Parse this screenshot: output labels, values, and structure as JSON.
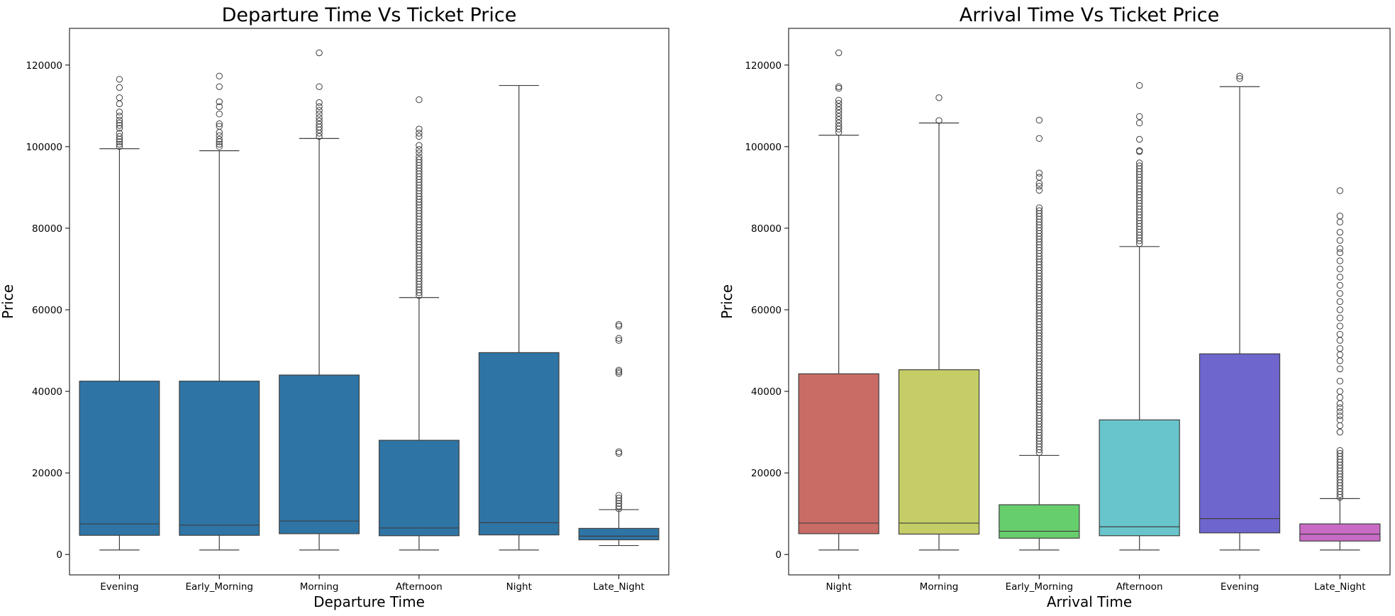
{
  "chart_data": [
    {
      "type": "box",
      "title": "Departure Time Vs Ticket Price",
      "xlabel": "Departure Time",
      "ylabel": "Price",
      "ylim": [
        -5000,
        129000
      ],
      "yticks": [
        0,
        20000,
        40000,
        60000,
        80000,
        100000,
        120000
      ],
      "grid": false,
      "categories": [
        "Evening",
        "Early_Morning",
        "Morning",
        "Afternoon",
        "Night",
        "Late_Night"
      ],
      "colors": [
        "#2e75a6",
        "#2e75a6",
        "#2e75a6",
        "#2e75a6",
        "#2e75a6",
        "#2e75a6"
      ],
      "boxes": [
        {
          "whislo": 1100,
          "q1": 4700,
          "med": 7500,
          "q3": 42500,
          "whishi": 99500,
          "fliers": [
            100000,
            100600,
            101200,
            101800,
            102500,
            103300,
            104500,
            105200,
            105800,
            106500,
            107500,
            108500,
            110500,
            112000,
            114500,
            116500
          ]
        },
        {
          "whislo": 1100,
          "q1": 4700,
          "med": 7200,
          "q3": 42500,
          "whishi": 99000,
          "fliers": [
            100000,
            100600,
            101200,
            101800,
            102700,
            103500,
            105000,
            105600,
            108000,
            109800,
            111000,
            114700,
            117300
          ]
        },
        {
          "whislo": 1100,
          "q1": 5100,
          "med": 8200,
          "q3": 44000,
          "whishi": 102000,
          "fliers": [
            102500,
            103300,
            104100,
            104800,
            105500,
            106300,
            107100,
            108000,
            108900,
            109800,
            110800,
            114700,
            123000
          ]
        },
        {
          "whislo": 1100,
          "q1": 4600,
          "med": 6500,
          "q3": 28000,
          "whishi": 63000,
          "fliers_range": [
            63500,
            97500
          ],
          "fliers": [
            98500,
            99300,
            100300,
            102500,
            103300,
            104300,
            111500
          ]
        },
        {
          "whislo": 1100,
          "q1": 4800,
          "med": 7800,
          "q3": 49500,
          "whishi": 115000,
          "fliers": []
        },
        {
          "whislo": 2200,
          "q1": 3600,
          "med": 4500,
          "q3": 6400,
          "whishi": 11000,
          "fliers_range": [
            11200,
            14500
          ],
          "fliers": [
            24800,
            25200,
            44400,
            44800,
            45200,
            52500,
            53000,
            56000,
            56400
          ]
        }
      ]
    },
    {
      "type": "box",
      "title": "Arrival Time Vs Ticket Price",
      "xlabel": "Arrival Time",
      "ylabel": "Price",
      "ylim": [
        -5000,
        129000
      ],
      "yticks": [
        0,
        20000,
        40000,
        60000,
        80000,
        100000,
        120000
      ],
      "grid": false,
      "categories": [
        "Night",
        "Morning",
        "Early_Morning",
        "Afternoon",
        "Evening",
        "Late_Night"
      ],
      "colors": [
        "#c96c65",
        "#c5cd66",
        "#67ce6c",
        "#68c5cb",
        "#6e66cd",
        "#c96bc6"
      ],
      "boxes": [
        {
          "whislo": 1100,
          "q1": 5100,
          "med": 7700,
          "q3": 44300,
          "whishi": 102800,
          "fliers": [
            103500,
            104300,
            105000,
            105800,
            106600,
            107400,
            108200,
            109000,
            109800,
            110600,
            111400,
            114300,
            114700,
            123000
          ]
        },
        {
          "whislo": 1100,
          "q1": 5000,
          "med": 7700,
          "q3": 45300,
          "whishi": 105800,
          "fliers": [
            106400,
            112000
          ]
        },
        {
          "whislo": 1100,
          "q1": 4000,
          "med": 5700,
          "q3": 12200,
          "whishi": 24300,
          "fliers_range": [
            25000,
            85000
          ],
          "fliers": [
            89300,
            90300,
            91000,
            92500,
            93500,
            102000,
            106500
          ]
        },
        {
          "whislo": 1100,
          "q1": 4600,
          "med": 6800,
          "q3": 33000,
          "whishi": 75500,
          "fliers_range": [
            76200,
            96000
          ],
          "fliers": [
            98800,
            99000,
            101800,
            105800,
            107400,
            115000
          ]
        },
        {
          "whislo": 1100,
          "q1": 5300,
          "med": 8800,
          "q3": 49200,
          "whishi": 114700,
          "fliers": [
            116700,
            117300
          ]
        },
        {
          "whislo": 1100,
          "q1": 3300,
          "med": 5000,
          "q3": 7500,
          "whishi": 13700,
          "fliers_range": [
            14000,
            25500
          ],
          "fliers": [
            30000,
            31600,
            33000,
            34000,
            35000,
            36000,
            37000,
            38500,
            40000,
            42500,
            45500,
            47500,
            49000,
            50500,
            52500,
            54000,
            56000,
            58000,
            60000,
            62000,
            64000,
            66000,
            68000,
            70000,
            72000,
            74000,
            75000,
            77000,
            79000,
            81500,
            83000,
            89200
          ]
        }
      ]
    }
  ]
}
